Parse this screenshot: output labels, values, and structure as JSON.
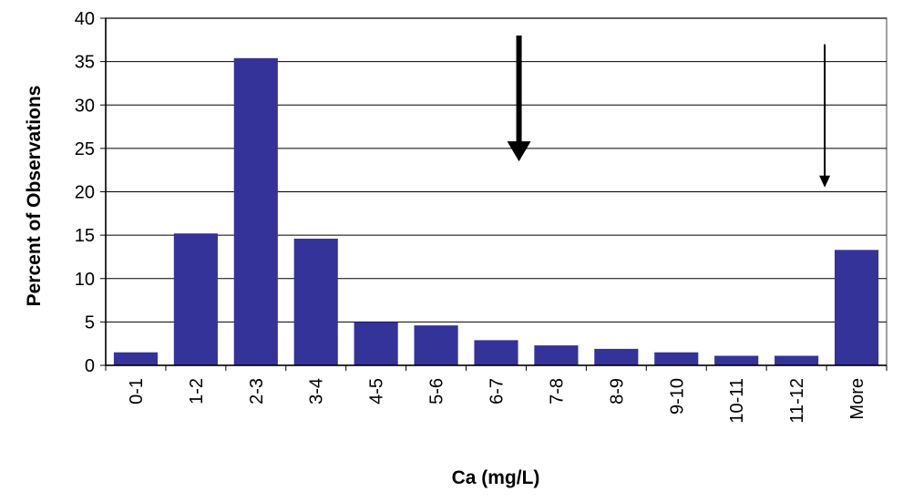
{
  "chart_data": {
    "type": "bar",
    "title": "",
    "xlabel": "Ca (mg/L)",
    "ylabel": "Percent of Observations",
    "categories": [
      "0-1",
      "1-2",
      "2-3",
      "3-4",
      "4-5",
      "5-6",
      "6-7",
      "7-8",
      "8-9",
      "9-10",
      "10-11",
      "11-12",
      "More"
    ],
    "values": [
      1.5,
      15.2,
      35.4,
      14.6,
      5.0,
      4.6,
      2.9,
      2.3,
      1.9,
      1.5,
      1.1,
      1.1,
      13.3
    ],
    "ylim": [
      0,
      40
    ],
    "yticks": [
      0,
      5,
      10,
      15,
      20,
      25,
      30,
      35,
      40
    ],
    "grid": true,
    "legend": "none",
    "colors": {
      "bar": "#333399",
      "grid": "#000000",
      "plot_border": "#808080",
      "arrow": "#000000"
    },
    "annotations": [
      {
        "type": "arrow",
        "style": "thick",
        "x_category": "6-7",
        "x_offset": 0.88,
        "y_from": 38,
        "y_to": 23.5
      },
      {
        "type": "arrow",
        "style": "thin",
        "x_category": "11-12",
        "x_offset": 0.97,
        "y_from": 37,
        "y_to": 20.5
      }
    ]
  }
}
